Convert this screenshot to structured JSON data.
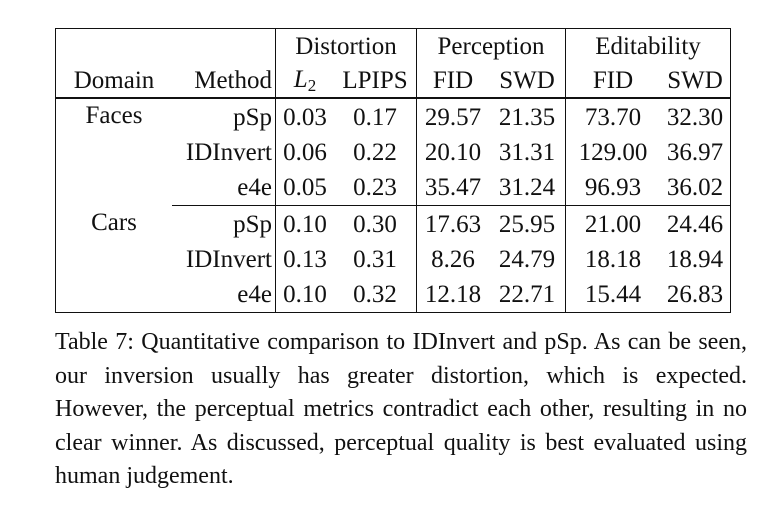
{
  "table": {
    "group_headers": {
      "distortion": "Distortion",
      "perception": "Perception",
      "editability": "Editability"
    },
    "column_headers": {
      "domain": "Domain",
      "method": "Method",
      "l2_base": "L",
      "l2_sub": "2",
      "lpips": "LPIPS",
      "perception_fid": "FID",
      "perception_swd": "SWD",
      "editability_fid": "FID",
      "editability_swd": "SWD"
    },
    "groups": [
      {
        "domain": "Faces",
        "rows": [
          {
            "method": "pSp",
            "l2": "0.03",
            "lpips": "0.17",
            "p_fid": "29.57",
            "p_swd": "21.35",
            "e_fid": "73.70",
            "e_swd": "32.30"
          },
          {
            "method": "IDInvert",
            "l2": "0.06",
            "lpips": "0.22",
            "p_fid": "20.10",
            "p_swd": "31.31",
            "e_fid": "129.00",
            "e_swd": "36.97"
          },
          {
            "method": "e4e",
            "l2": "0.05",
            "lpips": "0.23",
            "p_fid": "35.47",
            "p_swd": "31.24",
            "e_fid": "96.93",
            "e_swd": "36.02"
          }
        ]
      },
      {
        "domain": "Cars",
        "rows": [
          {
            "method": "pSp",
            "l2": "0.10",
            "lpips": "0.30",
            "p_fid": "17.63",
            "p_swd": "25.95",
            "e_fid": "21.00",
            "e_swd": "24.46"
          },
          {
            "method": "IDInvert",
            "l2": "0.13",
            "lpips": "0.31",
            "p_fid": "8.26",
            "p_swd": "24.79",
            "e_fid": "18.18",
            "e_swd": "18.94"
          },
          {
            "method": "e4e",
            "l2": "0.10",
            "lpips": "0.32",
            "p_fid": "12.18",
            "p_swd": "22.71",
            "e_fid": "15.44",
            "e_swd": "26.83"
          }
        ]
      }
    ]
  },
  "caption": {
    "text": "Table 7: Quantitative comparison to IDInvert and pSp. As can be seen, our inversion usually has greater distortion, which is expected. However, the perceptual metrics contradict each other, resulting in no clear winner. As discussed, perceptual quality is best evaluated using human judgement."
  }
}
